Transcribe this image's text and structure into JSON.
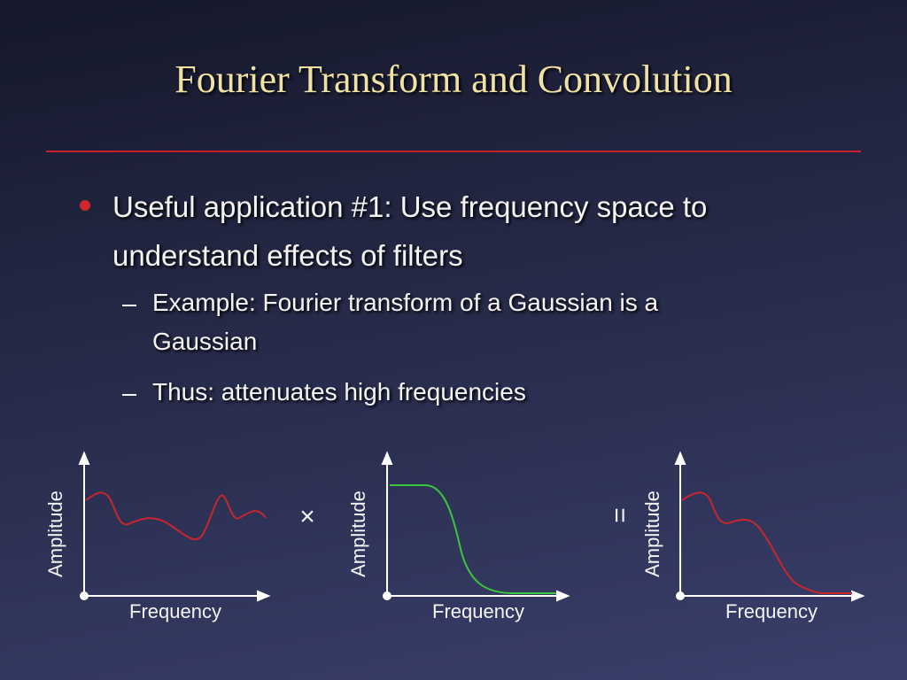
{
  "title": "Fourier Transform and Convolution",
  "bullets": [
    {
      "text": "Useful application #1: Use frequency space to understand effects of filters",
      "sub": [
        "Example: Fourier transform of a Gaussian is a Gaussian",
        "Thus: attenuates high frequencies"
      ]
    }
  ],
  "diagrams": [
    {
      "y_label": "Amplitude",
      "x_label": "Frequency"
    },
    {
      "y_label": "Amplitude",
      "x_label": "Frequency"
    },
    {
      "y_label": "Amplitude",
      "x_label": "Frequency"
    }
  ],
  "operators": [
    "×",
    "="
  ]
}
